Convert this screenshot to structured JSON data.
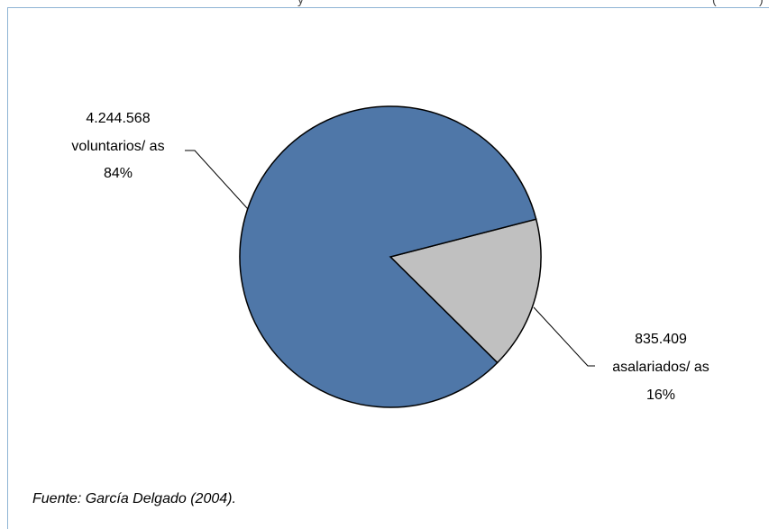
{
  "chart_data": {
    "type": "pie",
    "slices": [
      {
        "value_label": "4.244.568",
        "name": "voluntarios/ as",
        "percent_label": "84%",
        "value": 4244568,
        "color": "#4f77a8"
      },
      {
        "value_label": "835.409",
        "name": "asalariados/ as",
        "percent_label": "16%",
        "value": 835409,
        "color": "#c0c0c0"
      }
    ]
  },
  "source_note": "Fuente: García Delgado (2004)."
}
